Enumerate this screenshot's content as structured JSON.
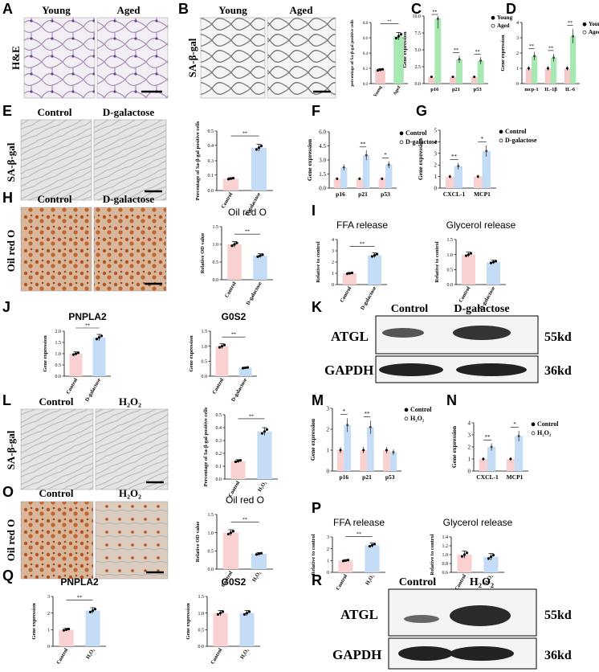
{
  "colors": {
    "control": "#f9d1d1",
    "treat": "#c4dcf6",
    "young_bar": "#f6c9c9",
    "aged_bar": "#a8e8b2",
    "wb_bg": "#f4f4f4",
    "micro_he": "#dcd6e2",
    "micro_sa": "#e6e6e6",
    "micro_cells": "#d8d8d6",
    "micro_oil": "#c98a5e"
  },
  "panels": {
    "A": {
      "letter": "A",
      "side": "H&E",
      "young": "Young",
      "aged": "Aged"
    },
    "B": {
      "letter": "B",
      "side": "SA-β-gal",
      "young": "Young",
      "aged": "Aged"
    },
    "C": {
      "letter": "C"
    },
    "D": {
      "letter": "D"
    },
    "E": {
      "letter": "E",
      "side": "SA-β-gal",
      "ctrl": "Control",
      "treat": "D-galactose"
    },
    "F": {
      "letter": "F"
    },
    "G": {
      "letter": "G"
    },
    "H": {
      "letter": "H",
      "side": "Oil red O",
      "ctrl": "Control",
      "treat": "D-galactose"
    },
    "I": {
      "letter": "I"
    },
    "J": {
      "letter": "J"
    },
    "K": {
      "letter": "K",
      "ctrl": "Control",
      "treat": "D-galactose",
      "band1": "ATGL",
      "band2": "GAPDH",
      "kd1": "55kd",
      "kd2": "36kd"
    },
    "L": {
      "letter": "L",
      "side": "SA-β-gal",
      "ctrl": "Control",
      "treat": "H₂O₂"
    },
    "M": {
      "letter": "M"
    },
    "N": {
      "letter": "N"
    },
    "O": {
      "letter": "O",
      "side": "Oil red O",
      "ctrl": "Control",
      "treat": "H₂O₂"
    },
    "P": {
      "letter": "P"
    },
    "Q": {
      "letter": "Q"
    },
    "R": {
      "letter": "R",
      "ctrl": "Control",
      "treat": "H₂O₂",
      "band1": "ATGL",
      "band2": "GAPDH",
      "kd1": "55kd",
      "kd2": "36kd"
    }
  },
  "chart_data": [
    {
      "id": "B",
      "type": "bar",
      "ylabel": "percentage of Sa-β-gal positive cells",
      "categories": [
        "Young",
        "Aged"
      ],
      "values": [
        0.18,
        0.62
      ],
      "sig": "**"
    },
    {
      "id": "C",
      "type": "bar",
      "ylabel": "Gene expression",
      "categories": [
        "p16",
        "p21",
        "p53"
      ],
      "series": [
        {
          "name": "Young",
          "values": [
            1,
            1,
            1
          ]
        },
        {
          "name": "Aged",
          "values": [
            9.6,
            3.6,
            3.4
          ]
        }
      ],
      "ylim": [
        0,
        10
      ],
      "sig": [
        "**",
        "**",
        "**"
      ]
    },
    {
      "id": "D",
      "type": "bar",
      "ylabel": "Gene expression",
      "categories": [
        "mcp-1",
        "IL-1β",
        "IL-6"
      ],
      "series": [
        {
          "name": "Young",
          "values": [
            1,
            1,
            1
          ]
        },
        {
          "name": "Aged",
          "values": [
            1.8,
            1.7,
            3.1
          ]
        }
      ],
      "ylim": [
        0,
        4
      ],
      "sig": [
        "**",
        "**",
        "**"
      ]
    },
    {
      "id": "E",
      "type": "bar",
      "ylabel": "Percentage of Sa-β-gal positive cells",
      "categories": [
        "Control",
        "D-galactose"
      ],
      "values": [
        0.1,
        0.36
      ],
      "sig": "**"
    },
    {
      "id": "F",
      "type": "bar",
      "ylabel": "Gene expression",
      "categories": [
        "p16",
        "p21",
        "p53"
      ],
      "series": [
        {
          "name": "Control",
          "values": [
            1,
            1,
            1
          ]
        },
        {
          "name": "D-galactose",
          "values": [
            2.2,
            3.5,
            2.5
          ]
        }
      ],
      "ylim": [
        0,
        6
      ],
      "sig": [
        "",
        "**",
        "*"
      ]
    },
    {
      "id": "G",
      "type": "bar",
      "ylabel": "Gene expression",
      "categories": [
        "CXCL-1",
        "MCP1"
      ],
      "series": [
        {
          "name": "Control",
          "values": [
            1,
            1
          ]
        },
        {
          "name": "D-galactose",
          "values": [
            1.9,
            3.2
          ]
        }
      ],
      "ylim": [
        0,
        5
      ],
      "yticks": [
        0,
        1,
        2,
        3,
        4,
        5
      ],
      "sig": [
        "**",
        "*"
      ]
    },
    {
      "id": "H",
      "type": "bar",
      "title": "Oil red O",
      "ylabel": "Relative OD value",
      "categories": [
        "Control",
        "D-galactose"
      ],
      "values": [
        1.0,
        0.68
      ],
      "ylim": [
        0,
        1.5
      ],
      "yticks": [
        0.0,
        0.5,
        1.0,
        1.5
      ],
      "sig": "**"
    },
    {
      "id": "I1",
      "type": "bar",
      "title": "FFA release",
      "ylabel": "Relative to control",
      "categories": [
        "Control",
        "D-galactose"
      ],
      "values": [
        1.0,
        2.6
      ],
      "ylim": [
        0,
        4
      ],
      "yticks": [
        0,
        1,
        2,
        3,
        4
      ],
      "sig": "**"
    },
    {
      "id": "I2",
      "type": "bar",
      "title": "Glycerol release",
      "ylabel": "Relative to control",
      "categories": [
        "Control",
        "D-galactose"
      ],
      "values": [
        1.0,
        0.75
      ],
      "ylim": [
        0,
        1.5
      ],
      "yticks": [
        0.0,
        0.5,
        1.0,
        1.5
      ],
      "sig": ""
    },
    {
      "id": "J1",
      "type": "bar",
      "title": "PNPLA2",
      "ylabel": "Gene expression",
      "categories": [
        "Control",
        "D-galactose"
      ],
      "values": [
        1.0,
        1.72
      ],
      "ylim": [
        0,
        2
      ],
      "yticks": [
        0.0,
        0.5,
        1.0,
        1.5,
        2.0
      ],
      "sig": "**"
    },
    {
      "id": "J2",
      "type": "bar",
      "title": "G0S2",
      "ylabel": "Gene expression",
      "categories": [
        "Control",
        "D-galactose"
      ],
      "values": [
        1.0,
        0.28
      ],
      "ylim": [
        0,
        1.5
      ],
      "yticks": [
        0.0,
        0.5,
        1.0,
        1.5
      ],
      "sig": "**"
    },
    {
      "id": "L",
      "type": "bar",
      "ylabel": "Percentage of Sa-β-gal positive cells",
      "categories": [
        "Control",
        "H₂O₂"
      ],
      "values": [
        0.14,
        0.37
      ],
      "ylim": [
        0,
        0.5
      ],
      "yticks": [
        0.0,
        0.1,
        0.2,
        0.3,
        0.4,
        0.5
      ],
      "sig": "**"
    },
    {
      "id": "M",
      "type": "bar",
      "ylabel": "Gene expression",
      "categories": [
        "p16",
        "p21",
        "p53"
      ],
      "series": [
        {
          "name": "Control",
          "values": [
            1,
            1,
            1
          ]
        },
        {
          "name": "H₂O₂",
          "values": [
            2.2,
            2.1,
            0.9
          ]
        }
      ],
      "ylim": [
        0,
        3
      ],
      "yticks": [
        0,
        1,
        2,
        3
      ],
      "sig": [
        "*",
        "**",
        ""
      ]
    },
    {
      "id": "N",
      "type": "bar",
      "ylabel": "Gene expression",
      "categories": [
        "CXCL-1",
        "MCP1"
      ],
      "series": [
        {
          "name": "Control",
          "values": [
            1,
            1
          ]
        },
        {
          "name": "H₂O₂",
          "values": [
            2.0,
            2.9
          ]
        }
      ],
      "ylim": [
        0,
        4
      ],
      "yticks": [
        0,
        1,
        2,
        3,
        4
      ],
      "sig": [
        "**",
        "*"
      ]
    },
    {
      "id": "O",
      "type": "bar",
      "title": "Oil red O",
      "ylabel": "Relative OD value",
      "categories": [
        "Control",
        "H₂O₂"
      ],
      "values": [
        1.0,
        0.42
      ],
      "ylim": [
        0,
        1.5
      ],
      "yticks": [
        0.0,
        0.5,
        1.0,
        1.5
      ],
      "sig": "**"
    },
    {
      "id": "P1",
      "type": "bar",
      "title": "FFA release",
      "ylabel": "Relative to control",
      "categories": [
        "Control",
        "H₂O₂"
      ],
      "values": [
        1.0,
        2.3
      ],
      "ylim": [
        0,
        3
      ],
      "yticks": [
        0,
        1,
        2,
        3
      ],
      "sig": "**"
    },
    {
      "id": "P2",
      "type": "bar",
      "title": "Glycerol release",
      "ylabel": "Relative to control",
      "categories": [
        "Control",
        "H₂O₂"
      ],
      "values": [
        1.0,
        0.95
      ],
      "ylim": [
        0.6,
        1.4
      ],
      "yticks": [
        0.6,
        0.8,
        1.0,
        1.2,
        1.4
      ],
      "sig": ""
    },
    {
      "id": "Q1",
      "type": "bar",
      "title": "PNPLA2",
      "ylabel": "Gene expression",
      "categories": [
        "Control",
        "H₂O₂"
      ],
      "values": [
        1.0,
        2.15
      ],
      "ylim": [
        0,
        3
      ],
      "yticks": [
        0,
        1,
        2,
        3
      ],
      "sig": "**"
    },
    {
      "id": "Q2",
      "type": "bar",
      "title": "G0S2",
      "ylabel": "Gene expression",
      "categories": [
        "Control",
        "H₂O₂"
      ],
      "values": [
        1.0,
        1.0
      ],
      "ylim": [
        0,
        1.5
      ],
      "yticks": [
        0.0,
        0.5,
        1.0,
        1.5
      ],
      "sig": ""
    }
  ]
}
